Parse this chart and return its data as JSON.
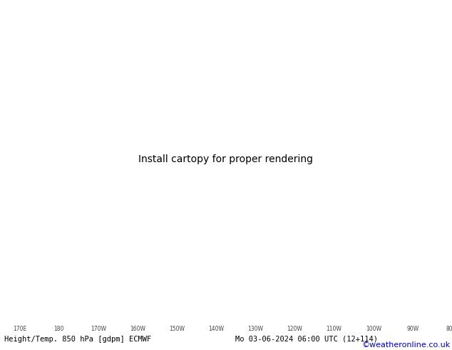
{
  "title_left": "Height/Temp. 850 hPa [gdpm] ECMWF",
  "title_right": "Mo 03-06-2024 06:00 UTC (12+114)",
  "watermark": "©weatheronline.co.uk",
  "ocean_color": "#c8c8c8",
  "land_green_color": "#c8f0a0",
  "land_gray_color": "#c8c8c8",
  "grid_color": "#aaaaaa",
  "height_color": "#000000",
  "temp_cyan_color": "#00bbbb",
  "temp_green_color": "#88cc00",
  "temp_lime_color": "#00bb00",
  "temp_orange_color": "#ff8800",
  "temp_red_color": "#ff2200",
  "temp_magenta_color": "#ee00ee",
  "watermark_color": "#0000cc",
  "fig_width": 6.34,
  "fig_height": 4.9,
  "dpi": 100,
  "lon_min": 165,
  "lon_max": 280,
  "lat_min": 15,
  "lat_max": 72
}
